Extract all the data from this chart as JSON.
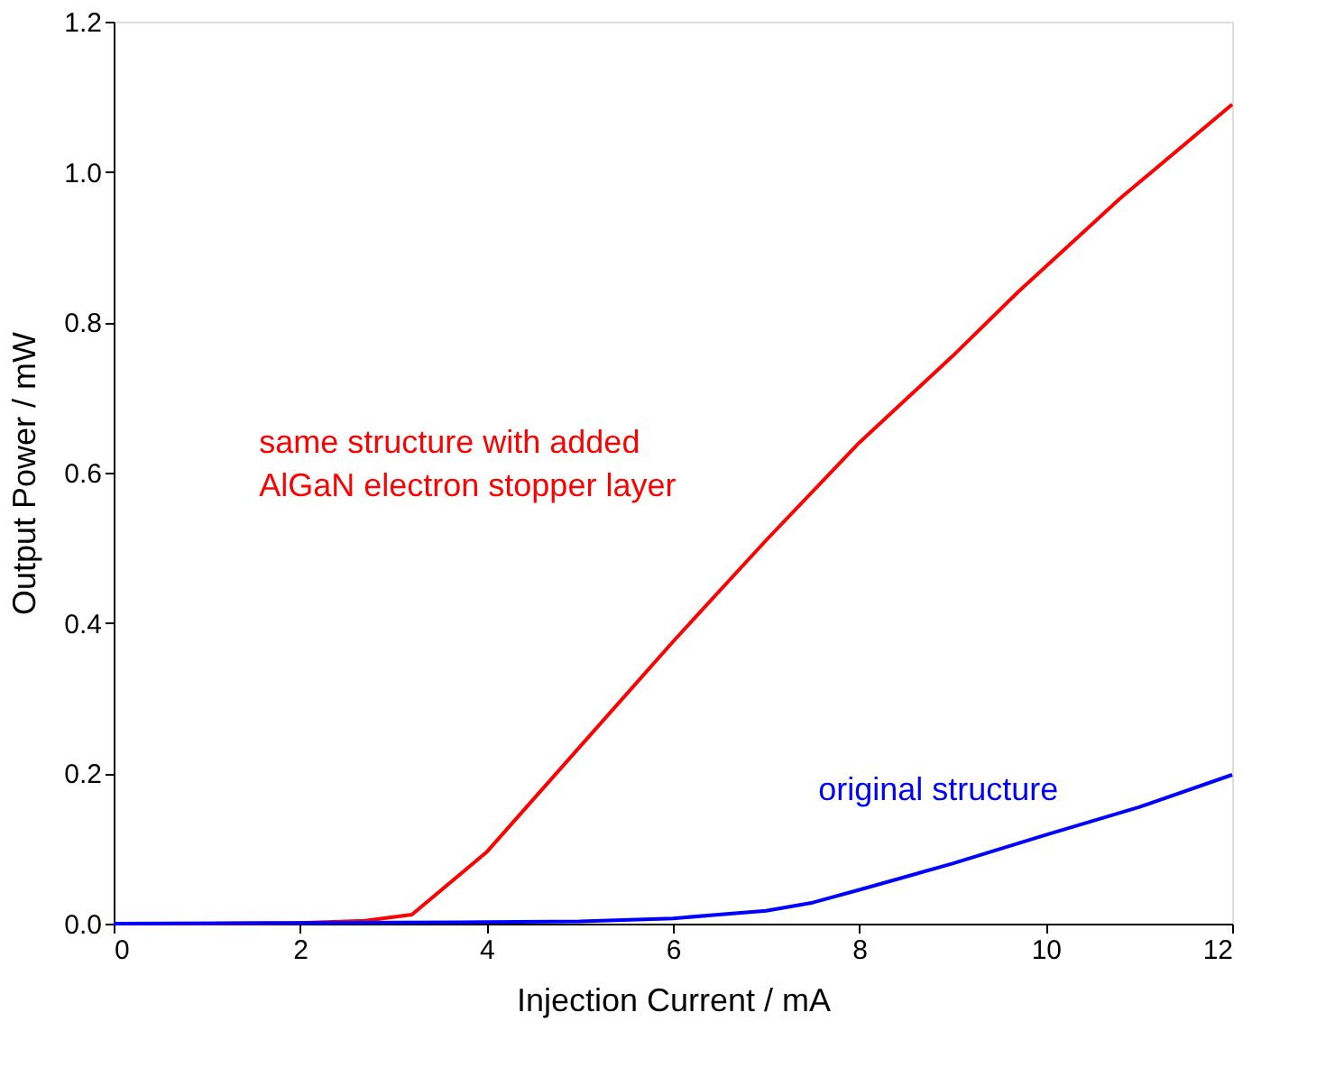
{
  "chart_data": {
    "type": "line",
    "xlabel": "Injection Current / mA",
    "ylabel": "Output Power / mW",
    "xlim": [
      0,
      12
    ],
    "xticks": [
      0,
      2,
      4,
      6,
      8,
      10,
      12
    ],
    "ylim": [
      0,
      1.2
    ],
    "yticks": [
      {
        "value": 0,
        "label": "0.0"
      },
      {
        "value": 0.2,
        "label": "0.2"
      },
      {
        "value": 0.4,
        "label": "0.4"
      },
      {
        "value": 0.6,
        "label": "0.6"
      },
      {
        "value": 0.8,
        "label": "0.8"
      },
      {
        "value": 1,
        "label": "1.0"
      },
      {
        "value": 1.2,
        "label": "1.2"
      }
    ],
    "grid": false,
    "marker": "none",
    "line_style": "solid",
    "series": [
      {
        "name": "same structure with added\nAlGaN electron stopper layer",
        "color": "#ff0000",
        "x": [
          0,
          1,
          2,
          2.7,
          3.2,
          4,
          5,
          6,
          7,
          8,
          9,
          9.7,
          10.8,
          12
        ],
        "values": [
          0,
          0,
          0.001,
          0.004,
          0.012,
          0.095,
          0.235,
          0.375,
          0.51,
          0.64,
          0.755,
          0.84,
          0.965,
          1.09
        ]
      },
      {
        "name": "original structure",
        "color": "#0000ff",
        "x": [
          0,
          4,
          5,
          6,
          7,
          7.5,
          8,
          9,
          10,
          11,
          12
        ],
        "values": [
          0,
          0.002,
          0.003,
          0.007,
          0.017,
          0.028,
          0.045,
          0.08,
          0.118,
          0.155,
          0.198
        ]
      }
    ]
  }
}
